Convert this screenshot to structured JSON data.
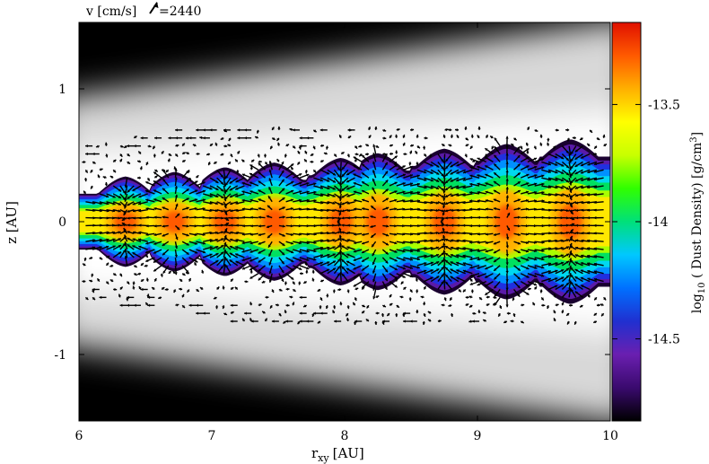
{
  "chart_data": {
    "type": "heatmap",
    "title": "",
    "velocity_key": {
      "label": "v [cm/s]",
      "value_text": "=2440",
      "value": 2440
    },
    "xlabel_main": "r",
    "xlabel_sub": "xy",
    "xlabel_unit": "[AU]",
    "ylabel": "z [AU]",
    "xlim": [
      6,
      10
    ],
    "ylim": [
      -1.5,
      1.5
    ],
    "x_ticks": [
      "6",
      "7",
      "8",
      "9",
      "10"
    ],
    "y_ticks": [
      "1",
      "0",
      "-1"
    ],
    "colorbar": {
      "label_prefix": "log",
      "label_sub": "10",
      "label_mid": " ( Dust Density) [g/cm",
      "label_sup": "3",
      "label_end": "]",
      "range": [
        -14.85,
        -13.15
      ],
      "ticks": [
        "-13.5",
        "-14",
        "-14.5"
      ],
      "colors": [
        "#000000",
        "#3a0a6e",
        "#6a1fb0",
        "#2030d0",
        "#0070ff",
        "#00c8ff",
        "#00e07a",
        "#30ff00",
        "#c8ff00",
        "#ffff00",
        "#ffb000",
        "#ff5a00",
        "#e01000"
      ]
    },
    "background": {
      "description_colors": [
        "#000000",
        "#ffffff"
      ]
    },
    "dust_layer": {
      "centers_r": [
        6.35,
        6.72,
        7.1,
        7.47,
        7.97,
        8.25,
        8.75,
        9.22,
        9.7
      ],
      "peak_log_density": [
        -13.25,
        -13.35,
        -13.35,
        -13.3,
        -13.3,
        -13.35,
        -13.3,
        -13.3,
        -13.3
      ],
      "half_thickness_max": 0.55,
      "half_thickness_min": 0.22
    }
  }
}
